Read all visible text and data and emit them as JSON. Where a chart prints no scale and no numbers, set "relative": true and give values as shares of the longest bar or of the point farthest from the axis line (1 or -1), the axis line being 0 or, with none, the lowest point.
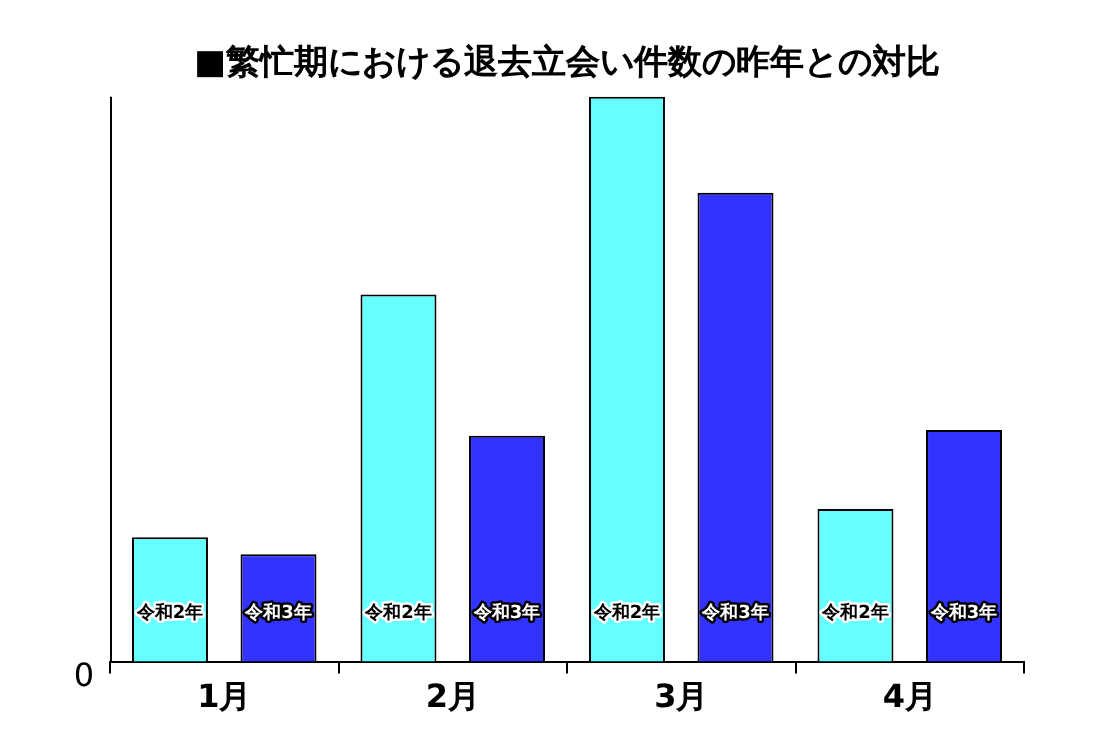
{
  "chart_data": {
    "type": "bar",
    "title": "■繁忙期における退去立会い件数の昨年との対比",
    "relative": true,
    "categories": [
      "1月",
      "2月",
      "3月",
      "4月"
    ],
    "series": [
      {
        "name": "令和2年",
        "color": "#66ffff",
        "values": [
          0.22,
          0.65,
          1,
          0.27
        ]
      },
      {
        "name": "令和3年",
        "color": "#3333ff",
        "values": [
          0.19,
          0.4,
          0.83,
          0.41
        ]
      }
    ],
    "annotations": [
      "0"
    ],
    "legend": false,
    "grid": false
  }
}
